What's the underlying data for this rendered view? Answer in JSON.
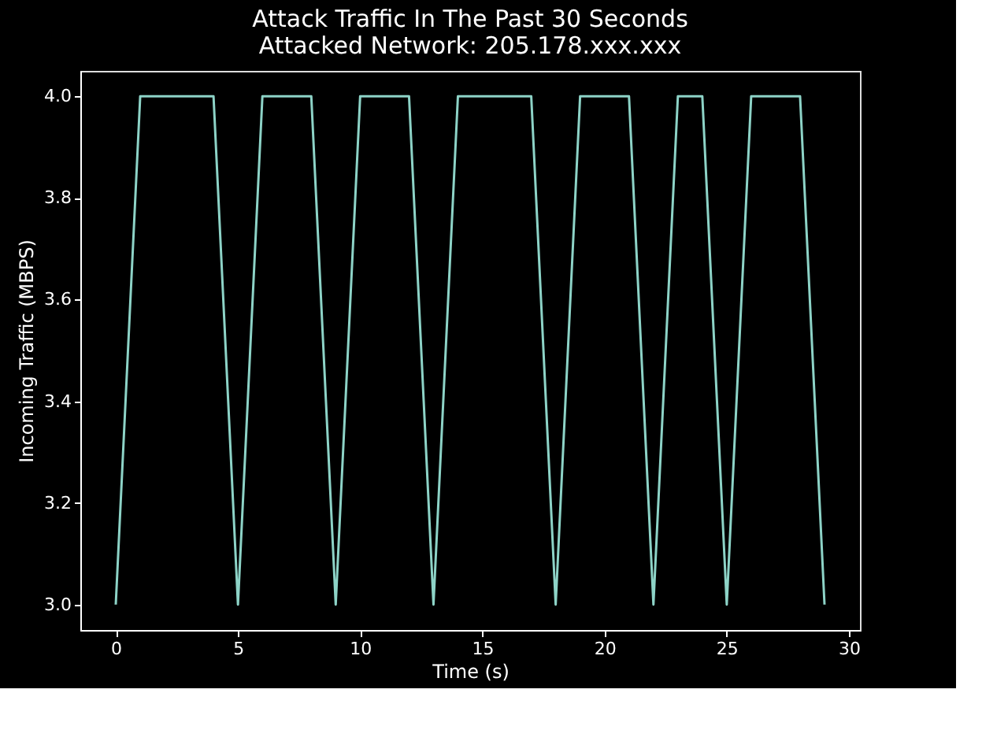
{
  "chart_data": {
    "type": "line",
    "title": "Attack Traffic In The Past 30 Seconds",
    "subtitle": "Attacked Network: 205.178.xxx.xxx",
    "xlabel": "Time (s)",
    "ylabel": "Incoming Traffic (MBPS)",
    "x": [
      0,
      1,
      2,
      3,
      4,
      5,
      6,
      7,
      8,
      9,
      10,
      11,
      12,
      13,
      14,
      15,
      16,
      17,
      18,
      19,
      20,
      21,
      22,
      23,
      24,
      25,
      26,
      27,
      28,
      29
    ],
    "series": [
      {
        "color": "#8dd3c7",
        "values": [
          3,
          4,
          4,
          4,
          4,
          3,
          4,
          4,
          4,
          3,
          4,
          4,
          4,
          3,
          4,
          4,
          4,
          4,
          3,
          4,
          4,
          4,
          3,
          4,
          4,
          3,
          4,
          4,
          4,
          3
        ]
      }
    ],
    "xlim": [
      -1.45,
      30.45
    ],
    "ylim": [
      2.95,
      4.05
    ],
    "xticks": [
      0,
      5,
      10,
      15,
      20,
      25,
      30
    ],
    "yticks": [
      {
        "value": 3,
        "label": "3.0"
      },
      3.2,
      3.4,
      3.6,
      3.8,
      {
        "value": 4,
        "label": "4.0"
      }
    ],
    "grid": false,
    "marker": "none",
    "line_style": "solid"
  }
}
